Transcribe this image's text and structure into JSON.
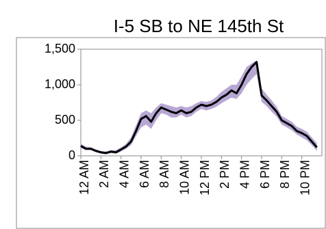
{
  "chart_data": {
    "type": "line",
    "title": "I-5 SB to NE 145th St",
    "x": [
      0,
      0.5,
      1,
      1.5,
      2,
      2.5,
      3,
      3.5,
      4,
      4.5,
      5,
      5.5,
      6,
      6.5,
      7,
      7.5,
      8,
      8.5,
      9,
      9.5,
      10,
      10.5,
      11,
      11.5,
      12,
      12.5,
      13,
      13.5,
      14,
      14.5,
      15,
      15.5,
      16,
      16.5,
      17,
      17.5,
      18,
      18.5,
      19,
      19.5,
      20,
      20.5,
      21,
      21.5,
      22,
      22.5,
      23,
      23.5
    ],
    "values": [
      140,
      100,
      100,
      70,
      50,
      40,
      60,
      50,
      90,
      130,
      200,
      350,
      520,
      560,
      480,
      600,
      680,
      650,
      620,
      600,
      640,
      600,
      620,
      680,
      720,
      700,
      720,
      760,
      820,
      860,
      920,
      880,
      1000,
      1150,
      1250,
      1320,
      850,
      780,
      700,
      620,
      500,
      460,
      420,
      350,
      320,
      280,
      200,
      120
    ],
    "band_high": [
      170,
      130,
      120,
      90,
      70,
      60,
      80,
      80,
      120,
      170,
      260,
      430,
      600,
      640,
      600,
      680,
      740,
      720,
      700,
      680,
      700,
      680,
      700,
      740,
      770,
      760,
      780,
      830,
      900,
      950,
      1000,
      1000,
      1120,
      1250,
      1300,
      1340,
      950,
      860,
      780,
      690,
      560,
      520,
      480,
      410,
      380,
      340,
      260,
      180
    ],
    "band_low": [
      110,
      80,
      80,
      50,
      30,
      20,
      40,
      30,
      60,
      100,
      150,
      280,
      400,
      440,
      380,
      500,
      600,
      580,
      540,
      540,
      580,
      540,
      560,
      620,
      660,
      640,
      660,
      690,
      740,
      780,
      820,
      800,
      880,
      1000,
      1080,
      1150,
      760,
      700,
      620,
      550,
      440,
      400,
      360,
      300,
      260,
      220,
      150,
      70
    ],
    "color": "#000000",
    "band_color": "#b7a7d3",
    "xlim": [
      0,
      24
    ],
    "xticks": [
      {
        "value": 0,
        "label": "12 AM"
      },
      {
        "value": 2,
        "label": "2 AM"
      },
      {
        "value": 4,
        "label": "4 AM"
      },
      {
        "value": 6,
        "label": "6 AM"
      },
      {
        "value": 8,
        "label": "8 AM"
      },
      {
        "value": 10,
        "label": "10 AM"
      },
      {
        "value": 12,
        "label": "12 PM"
      },
      {
        "value": 14,
        "label": "2 PM"
      },
      {
        "value": 16,
        "label": "4 PM"
      },
      {
        "value": 18,
        "label": "6 PM"
      },
      {
        "value": 20,
        "label": "8 PM"
      },
      {
        "value": 22,
        "label": "10 PM"
      }
    ],
    "ylim": [
      0,
      1500
    ],
    "yticks": [
      0,
      500,
      {
        "value": 1000,
        "label": "1,000"
      },
      {
        "value": 1500,
        "label": "1,500"
      }
    ]
  }
}
